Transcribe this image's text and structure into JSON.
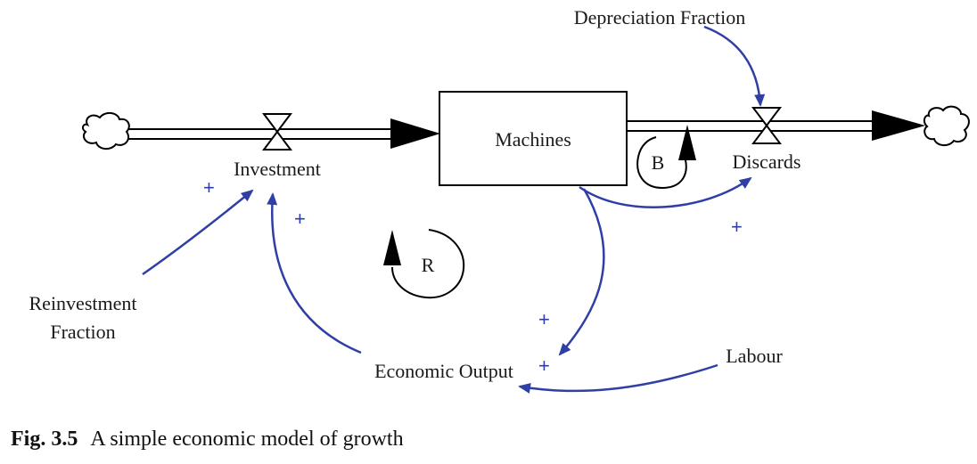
{
  "diagram": {
    "stock": "Machines",
    "flows": {
      "inflow": "Investment",
      "outflow": "Discards"
    },
    "variables": {
      "depreciation": "Depreciation Fraction",
      "reinvestment_line1": "Reinvestment",
      "reinvestment_line2": "Fraction",
      "output": "Economic Output",
      "labour": "Labour"
    },
    "loops": {
      "balancing": "B",
      "reinforcing": "R"
    },
    "link_polarity": "+",
    "colors": {
      "link": "#2f3fa6",
      "stock": "#000000",
      "text": "#1a1a1a"
    }
  },
  "caption": {
    "number": "Fig. 3.5",
    "text": "A simple economic model of growth"
  }
}
